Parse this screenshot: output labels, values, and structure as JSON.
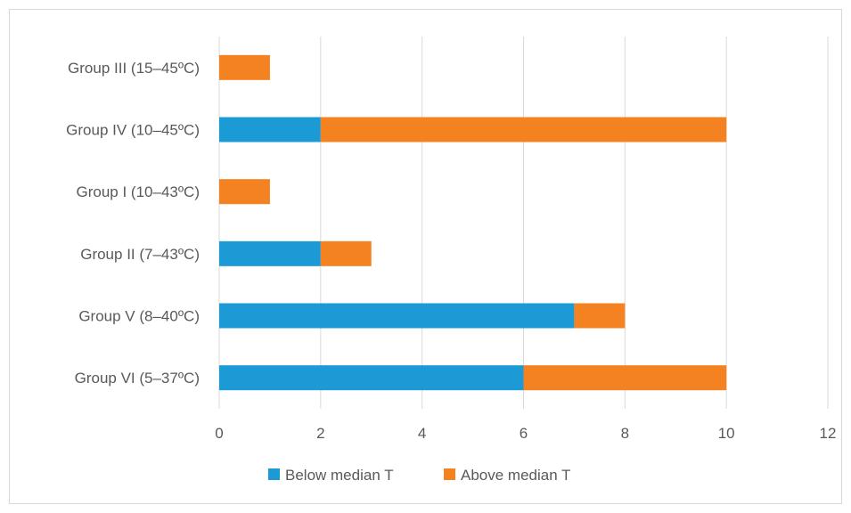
{
  "chart_data": {
    "type": "bar",
    "orientation": "horizontal",
    "stacked": true,
    "title": "",
    "xlabel": "",
    "ylabel": "",
    "categories": [
      "Group III  (15–45ºC)",
      "Group IV  (10–45ºC)",
      "Group I (10–43ºC)",
      "Group II (7–43ºC)",
      "Group V (8–40ºC)",
      "Group VI (5–37ºC)"
    ],
    "series": [
      {
        "name": "Below median T",
        "color": "#1b9ad6",
        "values": [
          0,
          2,
          0,
          2,
          7,
          6
        ]
      },
      {
        "name": "Above median T",
        "color": "#f58220",
        "values": [
          1,
          8,
          1,
          1,
          1,
          4
        ]
      }
    ],
    "xlim": [
      0,
      12
    ],
    "xticks": [
      0,
      2,
      4,
      6,
      8,
      10,
      12
    ],
    "grid": "vertical",
    "legend_position": "bottom",
    "gridline_color": "#d9d9d9"
  }
}
